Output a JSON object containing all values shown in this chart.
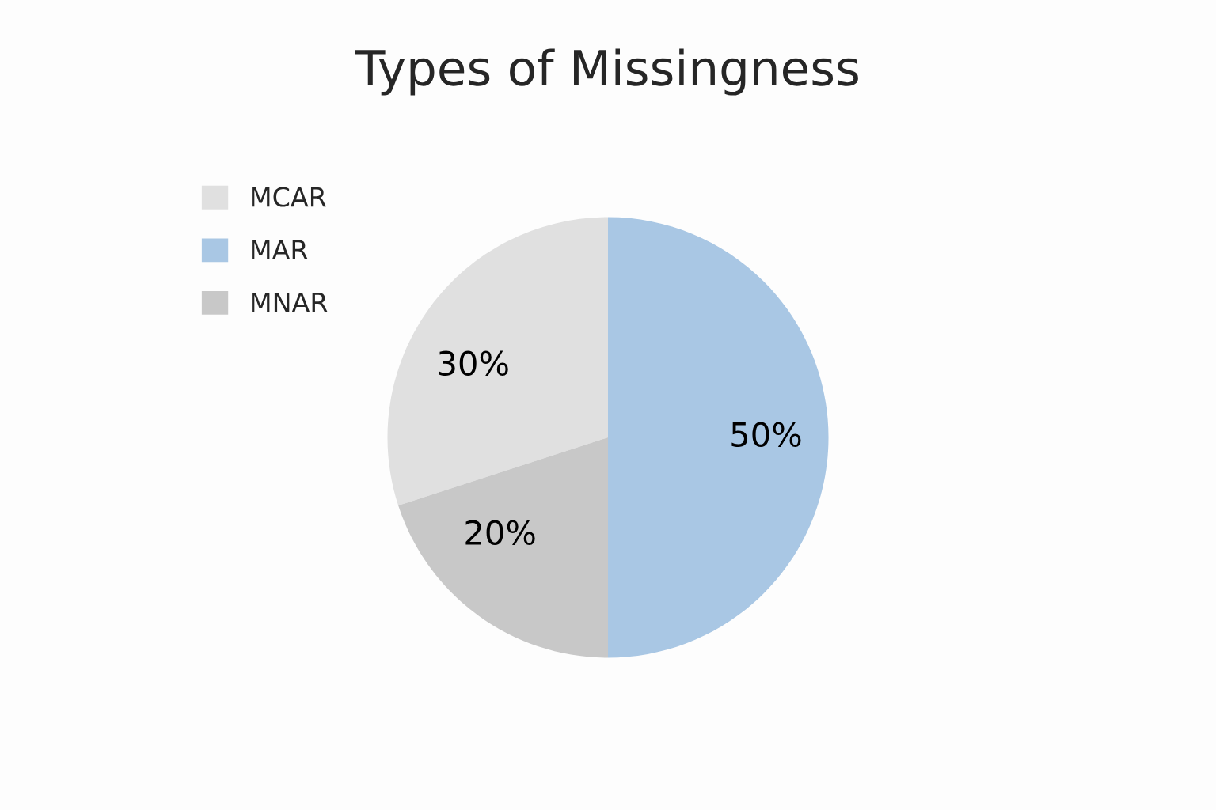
{
  "chart_data": {
    "type": "pie",
    "title": "Types of Missingness",
    "categories": [
      "MCAR",
      "MAR",
      "MNAR"
    ],
    "values": [
      30,
      50,
      20
    ],
    "colors": [
      "#e0e0e0",
      "#a9c7e4",
      "#c8c8c8"
    ],
    "value_labels": [
      "30%",
      "50%",
      "20%"
    ],
    "legend": "top left"
  }
}
